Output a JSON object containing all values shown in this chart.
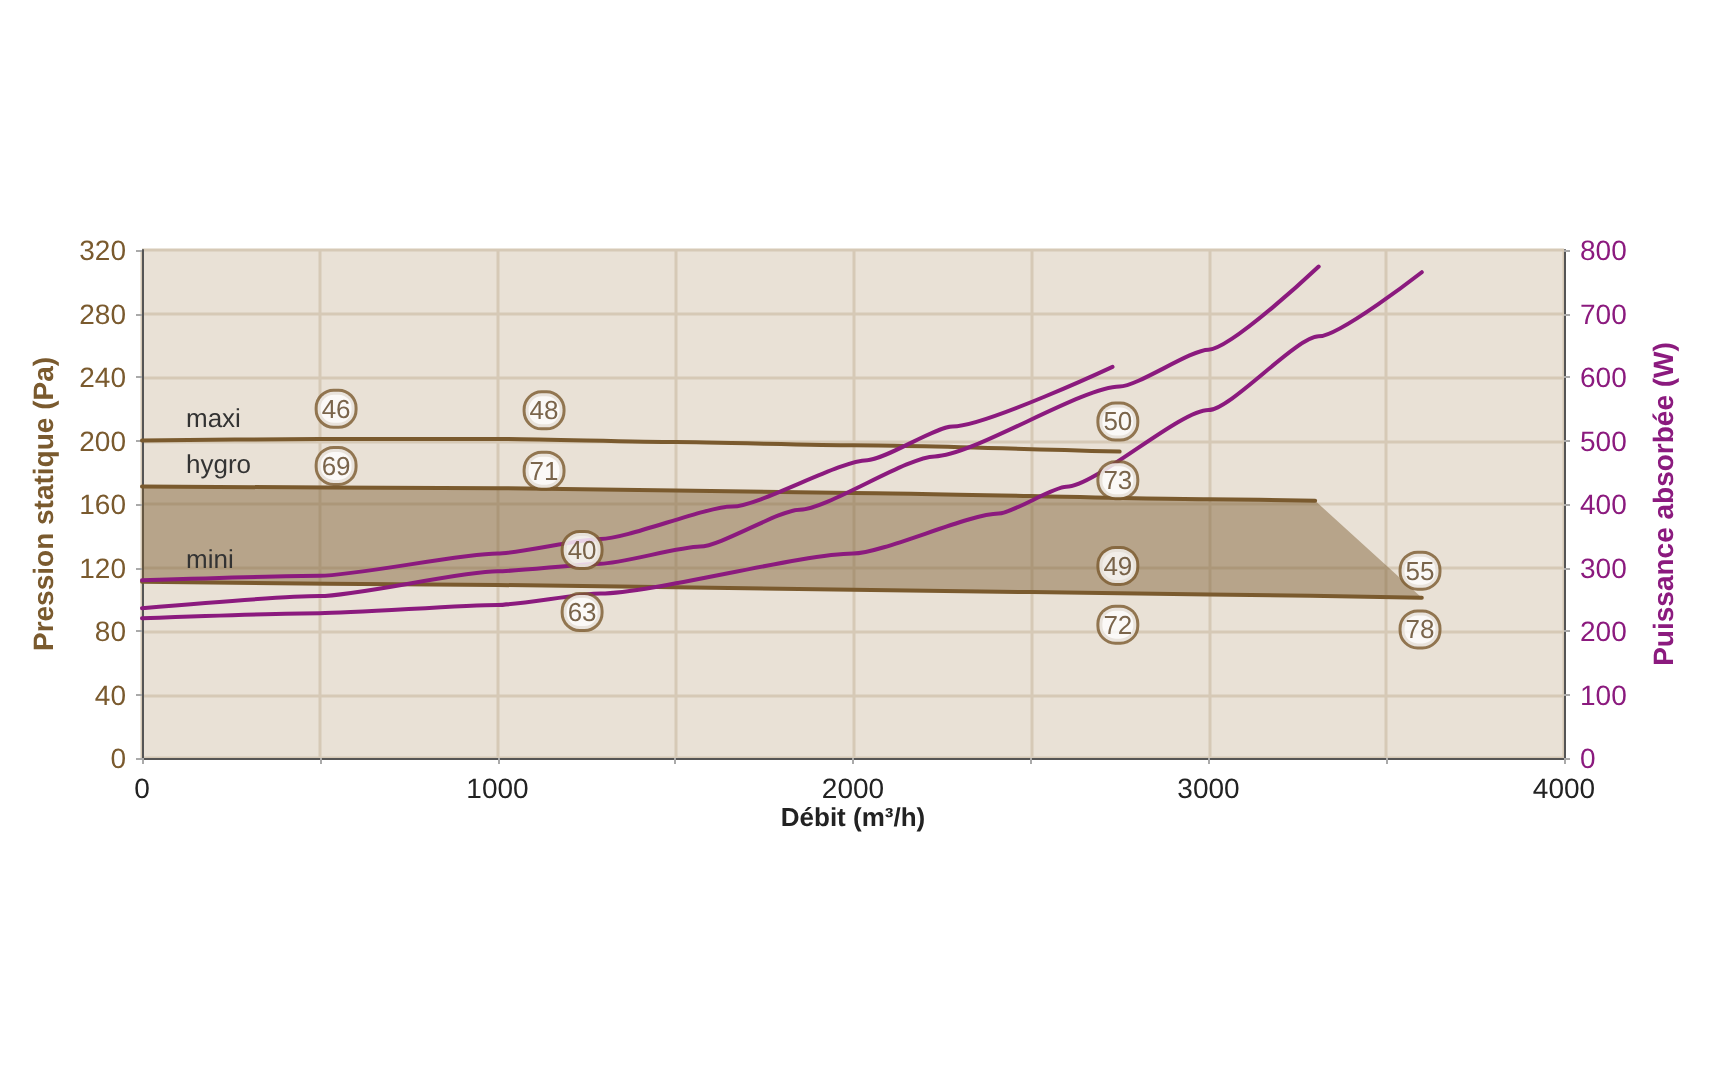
{
  "chart_data": {
    "type": "line",
    "xlabel": "Débit (m³/h)",
    "ylabel": "Pression statique (Pa)",
    "y2label": "Puissance absorbée (W)",
    "xlim": [
      0,
      4000
    ],
    "xticks": [
      0,
      {
        "value": 500,
        "label": null
      },
      1000,
      {
        "value": 1500,
        "label": null
      },
      2000,
      {
        "value": 2500,
        "label": null
      },
      3000,
      {
        "value": 3500,
        "label": null
      },
      4000
    ],
    "ylim": [
      0,
      320
    ],
    "yticks": [
      0,
      40,
      80,
      120,
      160,
      200,
      240,
      280,
      320
    ],
    "y2lim": [
      0,
      800
    ],
    "y2ticks": [
      0,
      100,
      200,
      300,
      400,
      500,
      600,
      700,
      800
    ],
    "grid": true,
    "legend": false,
    "marker": "none",
    "line_style": "solid",
    "series": [
      {
        "name": "maxi",
        "color": "#7a5a2e",
        "x": [
          0,
          500,
          1000,
          1500,
          2000,
          2750
        ],
        "values": [
          200,
          201,
          201,
          199,
          197,
          193
        ]
      },
      {
        "name": "hygro",
        "color": "#7a5a2e",
        "x": [
          0,
          1000,
          2000,
          3000,
          3300,
          3600
        ],
        "values": [
          171,
          170,
          167,
          163,
          162,
          null
        ],
        "lower": [
          111,
          109,
          106,
          103,
          102,
          101
        ],
        "upper": [
          171,
          170,
          167,
          163,
          162,
          101
        ]
      },
      {
        "name": "mini",
        "color": "#7a5a2e",
        "x": [
          0,
          1000,
          2000,
          3000,
          3600
        ],
        "values": [
          111,
          109,
          106,
          103,
          101
        ]
      },
      {
        "color": "#8b1a7e",
        "axis": "y2",
        "x": [
          0,
          500,
          1000,
          1290,
          1660,
          2040,
          2280,
          2730
        ],
        "values": [
          280,
          287,
          322,
          345,
          396,
          469,
          522,
          616
        ]
      },
      {
        "color": "#8b1a7e",
        "axis": "y2",
        "x": [
          0,
          500,
          1000,
          1290,
          1570,
          1850,
          2230,
          2750,
          3000,
          3310
        ],
        "values": [
          236,
          255,
          294,
          306,
          333,
          391,
          475,
          585,
          643,
          774
        ]
      },
      {
        "color": "#8b1a7e",
        "axis": "y2",
        "x": [
          0,
          500,
          1000,
          1290,
          2000,
          2410,
          2600,
          3000,
          3310,
          3600
        ],
        "values": [
          220,
          228,
          241,
          259,
          322,
          385,
          427,
          548,
          664,
          765
        ]
      }
    ],
    "annotations": [
      {
        "text": "46",
        "x": 546,
        "y": 220
      },
      {
        "text": "48",
        "x": 1131,
        "y": 219
      },
      {
        "text": "50",
        "x": 2745,
        "y": 212
      },
      {
        "text": "69",
        "x": 546,
        "y": 184
      },
      {
        "text": "71",
        "x": 1131,
        "y": 181
      },
      {
        "text": "73",
        "x": 2745,
        "y": 175
      },
      {
        "text": "40",
        "x": 1238,
        "y": 131
      },
      {
        "text": "49",
        "x": 2745,
        "y": 121
      },
      {
        "text": "55",
        "x": 3595,
        "y": 118
      },
      {
        "text": "63",
        "x": 1238,
        "y": 92
      },
      {
        "text": "72",
        "x": 2745,
        "y": 84
      },
      {
        "text": "78",
        "x": 3595,
        "y": 81
      }
    ]
  }
}
